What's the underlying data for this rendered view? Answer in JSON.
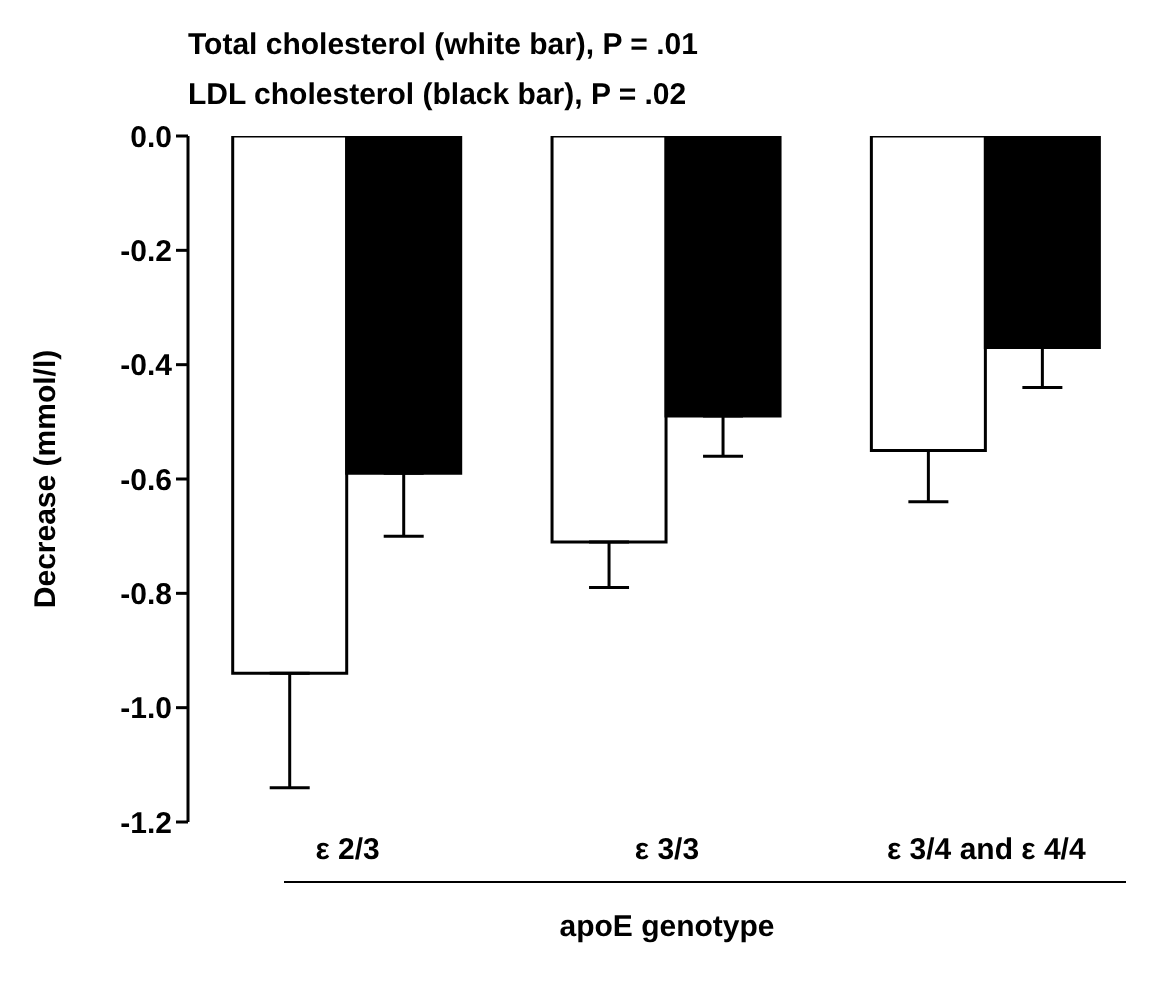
{
  "chart_data": {
    "type": "bar",
    "title": "Total cholesterol (white bar), P = .01",
    "subtitle": "LDL cholesterol (black bar), P = .02",
    "xlabel": "apoE genotype",
    "ylabel": "Decrease (mmol/l)",
    "categories": [
      "ε 2/3",
      "ε 3/3",
      "ε 3/4 and ε 4/4"
    ],
    "series": [
      {
        "color": "#ffffff",
        "values": [
          -0.94,
          -0.71,
          -0.55
        ],
        "errors": [
          [
            -1.14,
            -0.94
          ],
          [
            -0.79,
            -0.71
          ],
          [
            -0.64,
            -0.55
          ]
        ]
      },
      {
        "color": "#000000",
        "values": [
          -0.59,
          -0.49,
          -0.37
        ],
        "errors": [
          [
            -0.7,
            -0.59
          ],
          [
            -0.56,
            -0.49
          ],
          [
            -0.44,
            -0.37
          ]
        ]
      }
    ],
    "ylim": [
      -1.2,
      0
    ],
    "yticks": [
      {
        "value": -1.2,
        "label": "-1.2"
      },
      {
        "value": -1.0,
        "label": "-1.0"
      },
      {
        "value": -0.8,
        "label": "-0.8"
      },
      {
        "value": -0.6,
        "label": "-0.6"
      },
      {
        "value": -0.4,
        "label": "-0.4"
      },
      {
        "value": -0.2,
        "label": "-0.2"
      },
      {
        "value": 0,
        "label": "0.0"
      }
    ],
    "grid": false,
    "legend": false
  }
}
